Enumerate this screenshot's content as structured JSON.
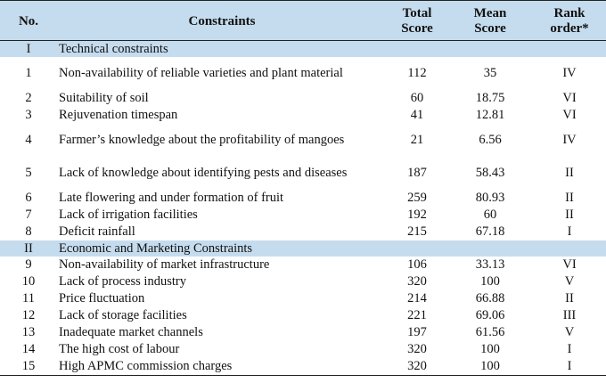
{
  "table": {
    "headers": {
      "no": "No.",
      "constraints": "Constraints",
      "total_line1": "Total",
      "total_line2": "Score",
      "mean_line1": "Mean",
      "mean_line2": "Score",
      "rank_line1": "Rank",
      "rank_line2": "order*"
    },
    "sections": [
      {
        "no": "I",
        "title": "Technical constraints",
        "rows": [
          {
            "no": "1",
            "constraint": "Non-availability of reliable varieties and plant material",
            "total": "112",
            "mean": "35",
            "rank": "IV"
          },
          {
            "no": "2",
            "constraint": "Suitability of soil",
            "total": "60",
            "mean": "18.75",
            "rank": "VI"
          },
          {
            "no": "3",
            "constraint": "Rejuvenation timespan",
            "total": "41",
            "mean": "12.81",
            "rank": "VI"
          },
          {
            "no": "4",
            "constraint": "Farmer’s knowledge about the profitability of mangoes",
            "total": "21",
            "mean": "6.56",
            "rank": "IV"
          },
          {
            "no": "5",
            "constraint": "Lack of knowledge about identifying pests and diseases",
            "total": "187",
            "mean": "58.43",
            "rank": "II"
          },
          {
            "no": "6",
            "constraint": "Late flowering and under formation of fruit",
            "total": "259",
            "mean": "80.93",
            "rank": "II"
          },
          {
            "no": "7",
            "constraint": "Lack of irrigation facilities",
            "total": "192",
            "mean": "60",
            "rank": "II"
          },
          {
            "no": "8",
            "constraint": "Deficit rainfall",
            "total": "215",
            "mean": "67.18",
            "rank": "I"
          }
        ]
      },
      {
        "no": "II",
        "title": "Economic and Marketing Constraints",
        "rows": [
          {
            "no": "9",
            "constraint": "Non-availability of market infrastructure",
            "total": "106",
            "mean": "33.13",
            "rank": "VI"
          },
          {
            "no": "10",
            "constraint": "Lack of process industry",
            "total": "320",
            "mean": "100",
            "rank": "V"
          },
          {
            "no": "11",
            "constraint": "Price fluctuation",
            "total": "214",
            "mean": "66.88",
            "rank": "II"
          },
          {
            "no": "12",
            "constraint": "Lack of storage facilities",
            "total": "221",
            "mean": "69.06",
            "rank": "III"
          },
          {
            "no": "13",
            "constraint": "Inadequate market channels",
            "total": "197",
            "mean": "61.56",
            "rank": "V"
          },
          {
            "no": "14",
            "constraint": "The high cost of labour",
            "total": "320",
            "mean": "100",
            "rank": "I"
          },
          {
            "no": "15",
            "constraint": "High APMC commission charges",
            "total": "320",
            "mean": "100",
            "rank": "I"
          }
        ]
      }
    ]
  }
}
